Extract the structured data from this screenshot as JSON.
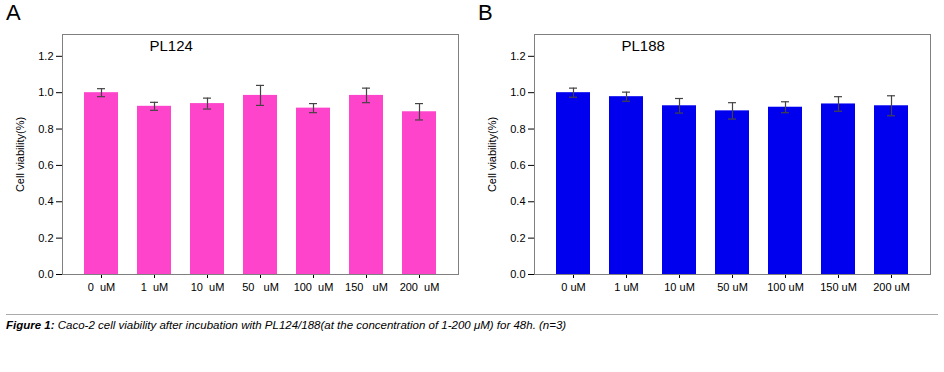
{
  "chart_data": [
    {
      "type": "bar",
      "title": "PL124",
      "panel_label": "A",
      "categories": [
        "0  uM",
        "1  uM",
        "10  uM",
        "50   uM",
        "100  uM",
        "150   uM",
        "200  uM"
      ],
      "values": [
        1.0,
        0.925,
        0.94,
        0.985,
        0.915,
        0.985,
        0.895
      ],
      "errors": [
        0.022,
        0.022,
        0.03,
        0.055,
        0.025,
        0.04,
        0.045
      ],
      "color": "#FF44CC",
      "ylabel": "Cell viability(%)",
      "ylim": [
        0.0,
        1.32
      ],
      "yticks": [
        {
          "value": 0.0,
          "label": "0.0"
        },
        0.2,
        0.4,
        0.6,
        0.8,
        {
          "value": 1.0,
          "label": "1.0"
        },
        1.2
      ],
      "grid": false
    },
    {
      "type": "bar",
      "title": "PL188",
      "panel_label": "B",
      "categories": [
        "0 uM",
        "1 uM",
        "10 uM",
        "50 uM",
        "100 uM",
        "150 uM",
        "200 uM"
      ],
      "values": [
        1.0,
        0.978,
        0.928,
        0.9,
        0.92,
        0.938,
        0.928
      ],
      "errors": [
        0.025,
        0.025,
        0.04,
        0.045,
        0.03,
        0.04,
        0.055
      ],
      "color": "#0000EE",
      "ylabel": "Cell viability(%)",
      "ylim": [
        0.0,
        1.32
      ],
      "yticks": [
        {
          "value": 0.0,
          "label": "0.0"
        },
        0.2,
        0.4,
        0.6,
        0.8,
        {
          "value": 1.0,
          "label": "1.0"
        },
        1.2
      ],
      "grid": false
    }
  ],
  "caption": [
    "Figure 1:",
    " Caco-2 cell viability after incubation with PL124/188(at the concentration of 1-200 μM) for 48h. (n=3)"
  ]
}
